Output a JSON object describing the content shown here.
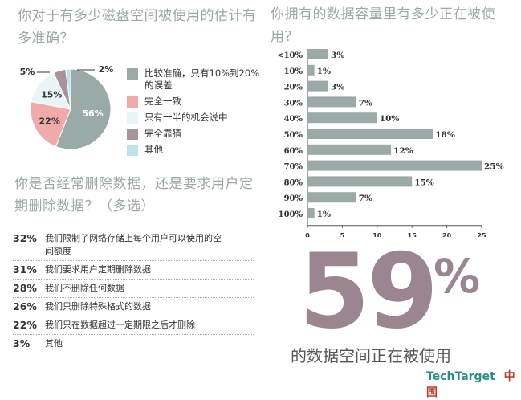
{
  "pie": {
    "title": "你对于有多少磁盘空间被使用的估计有多准确？",
    "legend": [
      {
        "label": "比较准确，只有10%到20%的误差",
        "color": "#9aaaa8"
      },
      {
        "label": "完全一致",
        "color": "#f0aaa9"
      },
      {
        "label": "只有一半的机会说中",
        "color": "#e9f4f7"
      },
      {
        "label": "完全靠猜",
        "color": "#a89496"
      },
      {
        "label": "其他",
        "color": "#bfe3ec"
      }
    ]
  },
  "bars": {
    "title": "你拥有的数据容量里有多少正在被使用？"
  },
  "deletion": {
    "title": "你是否经常删除数据，还是要求用户定期删除数据？（多选）",
    "items": [
      {
        "pct": "32%",
        "text": "我们限制了网络存储上每个用户可以使用的空间额度"
      },
      {
        "pct": "31%",
        "text": "我们要求用户定期删除数据"
      },
      {
        "pct": "28%",
        "text": "我们不删除任何数据"
      },
      {
        "pct": "26%",
        "text": "我们只删除特殊格式的数据"
      },
      {
        "pct": "22%",
        "text": "我们只在数据超过一定期限之后才删除"
      },
      {
        "pct": "3%",
        "text": "其他"
      }
    ]
  },
  "highlight": {
    "number": "59",
    "percent_sign": "%",
    "caption": "的数据空间正在被使用"
  },
  "brand": {
    "name": "TechTarget",
    "region": "中国"
  },
  "chart_data": [
    {
      "type": "pie",
      "title": "你对于有多少磁盘空间被使用的估计有多准确？",
      "slices": [
        {
          "label": "比较准确，只有10%到20%的误差",
          "value": 56,
          "color": "#9aaaa8"
        },
        {
          "label": "完全一致",
          "value": 22,
          "color": "#f0aaa9"
        },
        {
          "label": "只有一半的机会说中",
          "value": 15,
          "color": "#e9f4f7"
        },
        {
          "label": "完全靠猜",
          "value": 5,
          "color": "#a89496"
        },
        {
          "label": "其他",
          "value": 2,
          "color": "#bfe3ec"
        }
      ],
      "slice_labels": [
        "56%",
        "22%",
        "15%",
        "5%",
        "2%"
      ]
    },
    {
      "type": "bar",
      "orientation": "horizontal",
      "title": "你拥有的数据容量里有多少正在被使用？",
      "categories": [
        "<10%",
        "10%",
        "20%",
        "30%",
        "40%",
        "50%",
        "60%",
        "70%",
        "80%",
        "90%",
        "100%"
      ],
      "values": [
        3,
        1,
        3,
        7,
        10,
        18,
        12,
        25,
        15,
        7,
        1
      ],
      "value_labels": [
        "3%",
        "1%",
        "3%",
        "7%",
        "10%",
        "18%",
        "12%",
        "25%",
        "15%",
        "7%",
        "1%"
      ],
      "xlim": [
        0,
        25
      ],
      "xticks": [
        "0",
        "5",
        "10",
        "15",
        "20",
        "25"
      ],
      "color": "#9aaaa8"
    }
  ]
}
